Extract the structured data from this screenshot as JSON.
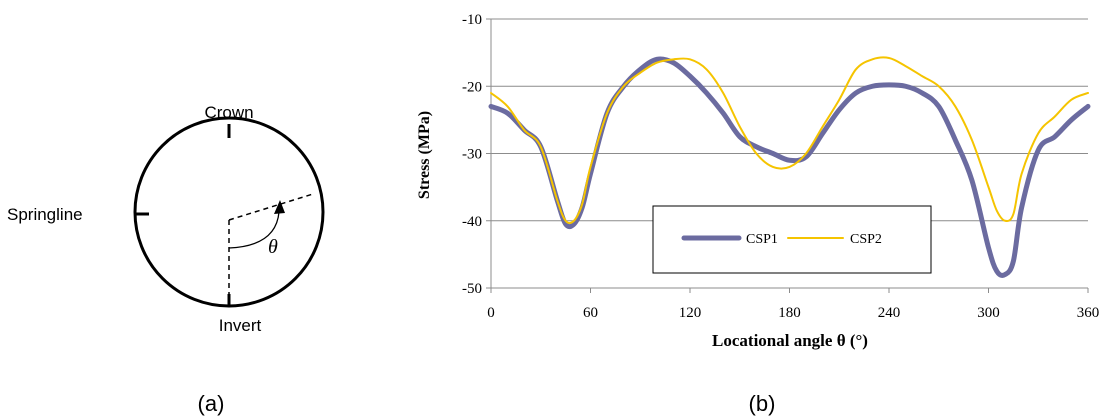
{
  "panel_a": {
    "caption": "(a)",
    "labels": {
      "crown": "Crown",
      "springline": "Springline",
      "invert": "Invert",
      "angle_symbol": "θ"
    }
  },
  "panel_b": {
    "caption": "(b)"
  },
  "chart_data": {
    "type": "line",
    "title": "",
    "xlabel": "Locational angle θ (°)",
    "ylabel": "Stress (MPa)",
    "xlim": [
      0,
      360
    ],
    "ylim": [
      -50,
      -10
    ],
    "x_ticks": [
      0,
      60,
      120,
      180,
      240,
      300,
      360
    ],
    "y_ticks": [
      -10,
      -20,
      -30,
      -40,
      -50
    ],
    "grid": "horizontal",
    "legend_position": "bottom-center",
    "series": [
      {
        "name": "CSP1",
        "color": "#6B6BA0",
        "x": [
          0,
          10,
          20,
          30,
          40,
          45,
          50,
          55,
          60,
          70,
          80,
          90,
          100,
          110,
          120,
          130,
          140,
          150,
          160,
          170,
          180,
          190,
          200,
          210,
          220,
          230,
          240,
          250,
          260,
          270,
          280,
          290,
          300,
          305,
          310,
          315,
          320,
          330,
          340,
          350,
          360
        ],
        "y": [
          -23,
          -24,
          -26.5,
          -29,
          -37,
          -40.5,
          -40.5,
          -38,
          -33,
          -24,
          -20,
          -17.5,
          -16,
          -16.5,
          -18.5,
          -21,
          -24,
          -27.5,
          -29,
          -30,
          -31,
          -30.5,
          -27,
          -23.5,
          -21,
          -20,
          -19.8,
          -20,
          -21,
          -23,
          -28,
          -34,
          -44,
          -47.5,
          -48,
          -46,
          -38,
          -29.5,
          -27.5,
          -25,
          -23
        ]
      },
      {
        "name": "CSP2",
        "color": "#F5C400",
        "x": [
          0,
          10,
          20,
          30,
          40,
          45,
          50,
          55,
          60,
          70,
          80,
          90,
          100,
          110,
          120,
          130,
          140,
          150,
          160,
          170,
          180,
          190,
          200,
          210,
          220,
          230,
          240,
          250,
          260,
          270,
          280,
          290,
          300,
          305,
          310,
          315,
          320,
          330,
          340,
          350,
          360
        ],
        "y": [
          -21,
          -23,
          -26.5,
          -29,
          -37,
          -40,
          -40,
          -37.5,
          -32,
          -24,
          -20,
          -18,
          -16.5,
          -16,
          -16,
          -17.5,
          -21,
          -26,
          -30,
          -32,
          -32,
          -30,
          -26,
          -22,
          -17.5,
          -16,
          -15.8,
          -17,
          -18.5,
          -20,
          -23,
          -28,
          -35,
          -38.5,
          -40,
          -39,
          -33,
          -27,
          -24.5,
          -22,
          -21
        ]
      }
    ]
  }
}
